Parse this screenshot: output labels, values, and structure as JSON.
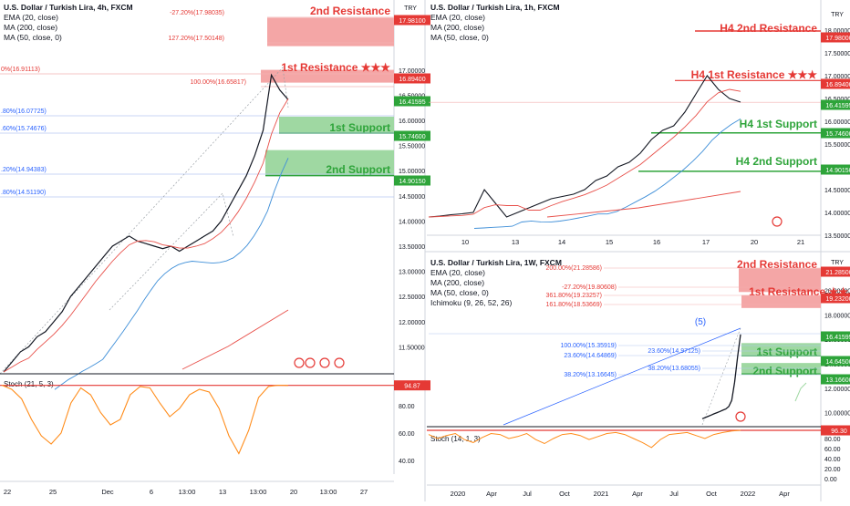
{
  "colors": {
    "resistance": "#e53935",
    "resistance_fill": "#f4a6a6",
    "support": "#2ea43a",
    "support_fill": "#9fd8a2",
    "ema": "#e8504a",
    "ma200": "#e8504a",
    "ma50": "#3f8fd8",
    "stoch": "#ff8c1a",
    "candle_up": "#26a69a",
    "candle_down": "#ef5350",
    "fib_blue": "#2962ff",
    "fib_red": "#e53935",
    "price_tag": "#2ea43a",
    "axis_text": "#131722"
  },
  "panels": {
    "left": {
      "title": "U.S. Dollar / Turkish Lira, 4h, FXCM",
      "indicators": [
        "EMA (20, close)",
        "MA (200, close)",
        "MA (50, close, 0)"
      ],
      "stoch_label": "Stoch (21, 5, 3)",
      "currency_badge": "TRY",
      "zone_labels": {
        "r2": "2nd Resistance",
        "r1": "1st Resistance ★★★",
        "s1": "1st Support",
        "s2": "2nd Support"
      },
      "fib_labels": [
        "-27.20%(17.98035)",
        "127.20%(17.50148)",
        "0%(16.91113)",
        "100.00%(16.65817)",
        ".80%(16.07725)",
        ".60%(15.74676)",
        ".20%(14.94383)",
        ".80%(14.51190)"
      ],
      "price_tags": [
        "17.98100",
        "16.89400",
        "16.41595",
        "15.74600",
        "14.90150"
      ],
      "stoch_tag": "94.87",
      "stoch_ticks": [
        "80.00",
        "60.00",
        "40.00"
      ],
      "x_ticks": [
        "22",
        "25",
        "Dec",
        "6",
        "13:00",
        "13",
        "13:00",
        "20",
        "13:00",
        "27"
      ]
    },
    "topright": {
      "title": "U.S. Dollar / Turkish Lira, 1h, FXCM",
      "indicators": [
        "EMA (20, close)",
        "MA (200, close)",
        "MA (50, close, 0)"
      ],
      "currency_badge": "TRY",
      "zone_labels": {
        "r2": "H4 2nd Resistance",
        "r1": "H4 1st Resistance ★★★",
        "s1": "H4 1st Support",
        "s2": "H4 2nd Support"
      },
      "price_tags": [
        "17.98000",
        "16.89400",
        "16.41595",
        "15.74600",
        "14.90150"
      ],
      "x_ticks": [
        "10",
        "13",
        "14",
        "15",
        "16",
        "17",
        "20",
        "21"
      ]
    },
    "bottomright": {
      "title": "U.S. Dollar / Turkish Lira, 1W, FXCM",
      "indicators": [
        "EMA (20, close)",
        "MA (200, close)",
        "MA (50, close, 0)",
        "Ichimoku (9, 26, 52, 26)"
      ],
      "stoch_label": "Stoch (14, 1, 3)",
      "currency_badge": "TRY",
      "zone_labels": {
        "r2": "2nd Resistance",
        "r1": "1st Resistance ★★",
        "s1": "1st Support",
        "s2": "2nd Support"
      },
      "fib_labels": [
        "200.00%(21.28586)",
        "-27.20%(19.80608)",
        "361.80%(19.23257)",
        "161.80%(18.53669)",
        "100.00%(15.35919)",
        "23.60%(14.64869)",
        "23.60%(14.97125)",
        "38.20%(13.16645)",
        "38.20%(13.68055)"
      ],
      "wave_label": "(5)",
      "price_tags": [
        "21.28500",
        "19.23200",
        "16.41595",
        "14.64500",
        "13.16600"
      ],
      "stoch_tag": "96.30",
      "stoch_ticks": [
        "80.00",
        "60.00",
        "40.00",
        "20.00",
        "0.00"
      ],
      "x_ticks": [
        "2020",
        "Apr",
        "Jul",
        "Oct",
        "2021",
        "Apr",
        "Jul",
        "Oct",
        "2022",
        "Apr"
      ]
    }
  },
  "chart_data": [
    {
      "type": "line",
      "title": "U.S. Dollar / Turkish Lira, 4h, FXCM",
      "price_axis": [
        "17.00000",
        "16.50000",
        "16.00000",
        "15.50000",
        "15.00000",
        "14.50000",
        "14.00000",
        "13.50000",
        "13.00000",
        "12.50000",
        "12.00000",
        "11.50000"
      ],
      "ylim": [
        11.0,
        18.3
      ],
      "levels": {
        "resistance_2": 17.981,
        "resistance_1": 16.894,
        "last": 16.41595,
        "support_1": 15.746,
        "support_2": 14.9015
      },
      "close": [
        11.0,
        11.2,
        11.4,
        11.5,
        11.7,
        11.8,
        12.0,
        12.2,
        12.5,
        12.7,
        12.9,
        13.1,
        13.3,
        13.5,
        13.6,
        13.7,
        13.6,
        13.55,
        13.5,
        13.45,
        13.5,
        13.4,
        13.5,
        13.6,
        13.7,
        13.8,
        14.0,
        14.3,
        14.6,
        14.9,
        15.3,
        15.8,
        16.9,
        16.6,
        16.41
      ]
    },
    {
      "type": "line",
      "title": "U.S. Dollar / Turkish Lira, 1h, FXCM",
      "price_axis": [
        "18.00000",
        "17.50000",
        "17.00000",
        "16.50000",
        "16.00000",
        "15.50000",
        "15.00000",
        "14.50000",
        "14.00000",
        "13.50000"
      ],
      "ylim": [
        13.5,
        18.5
      ],
      "levels": {
        "resistance_2": 17.98,
        "resistance_1": 16.894,
        "last": 16.41595,
        "support_1": 15.746,
        "support_2": 14.9015
      },
      "close": [
        13.9,
        13.92,
        13.95,
        13.97,
        14.0,
        14.5,
        14.2,
        13.9,
        14.0,
        14.1,
        14.2,
        14.3,
        14.35,
        14.4,
        14.5,
        14.7,
        14.8,
        15.0,
        15.1,
        15.3,
        15.6,
        15.8,
        15.9,
        16.2,
        16.6,
        17.0,
        16.7,
        16.5,
        16.42
      ]
    },
    {
      "type": "line",
      "title": "U.S. Dollar / Turkish Lira, 1W, FXCM",
      "price_axis": [
        "20.00000",
        "18.00000",
        "16.00000",
        "14.00000",
        "12.00000",
        "10.00000"
      ],
      "ylim": [
        9.0,
        22.5
      ],
      "levels": {
        "resistance_2": 21.285,
        "resistance_1": 19.232,
        "last": 16.41595,
        "support_1": 14.645,
        "support_2": 13.166
      },
      "close": [
        9.5,
        9.6,
        9.7,
        9.8,
        9.9,
        10.0,
        10.1,
        10.2,
        10.3,
        10.5,
        11.0,
        12.5,
        14.6,
        16.4
      ]
    }
  ]
}
